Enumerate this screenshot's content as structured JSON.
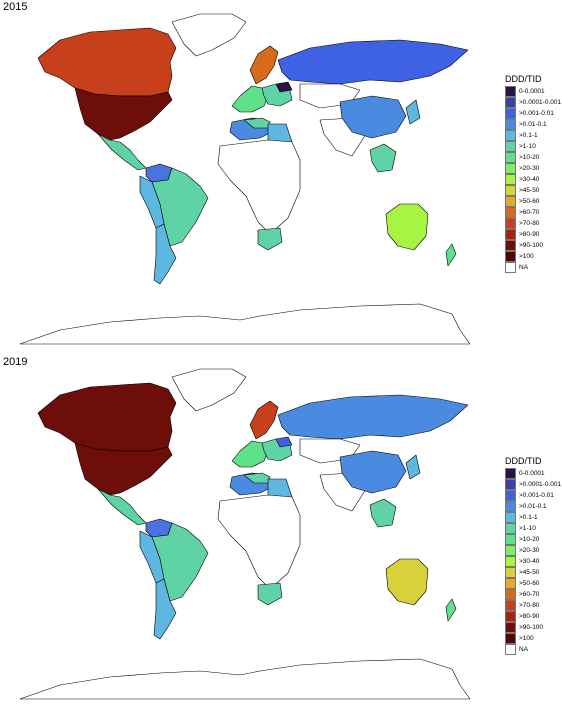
{
  "panels": [
    {
      "year": "2015",
      "regions": {
        "north_america": "#c7401b",
        "usa": "#6e0e0b",
        "central_america": "#5fd3a5",
        "south_america": "#5fd3a5",
        "west_south_america": "#5db7e0",
        "southern_cone": "#5db7e0",
        "venezuela": "#4a72e0",
        "greenland": "#ffffff",
        "western_europe": "#5fe08a",
        "eastern_europe": "#5fd3a5",
        "scandinavia": "#d86a1b",
        "belarus": "#2a1147",
        "russia": "#3f61e3",
        "middle_east": "#4a8ae0",
        "china": "#4a8ae0",
        "east_asia": "#5db7e0",
        "southeast_asia": "#5fd3a5",
        "south_asia": "#ffffff",
        "central_asia": "#ffffff",
        "africa": "#ffffff",
        "north_africa": "#5fd3a5",
        "egypt": "#5db7e0",
        "south_africa": "#5fd3a5",
        "australia": "#a7f542",
        "new_zealand": "#5fe08a",
        "antarctica": "#ffffff"
      }
    },
    {
      "year": "2019",
      "regions": {
        "north_america": "#6e0e0b",
        "usa": "#6e0e0b",
        "central_america": "#5fd3a5",
        "south_america": "#5fd3a5",
        "west_south_america": "#5db7e0",
        "southern_cone": "#5db7e0",
        "venezuela": "#4a72e0",
        "greenland": "#ffffff",
        "western_europe": "#5fe08a",
        "eastern_europe": "#5fd3a5",
        "scandinavia": "#c7401b",
        "belarus": "#3f61e3",
        "russia": "#4a8ae0",
        "middle_east": "#4a8ae0",
        "china": "#4a8ae0",
        "east_asia": "#5db7e0",
        "southeast_asia": "#5fd3a5",
        "south_asia": "#ffffff",
        "central_asia": "#ffffff",
        "africa": "#ffffff",
        "north_africa": "#5fd3a5",
        "egypt": "#5db7e0",
        "south_africa": "#5fd3a5",
        "australia": "#d7d23a",
        "new_zealand": "#5fe08a",
        "antarctica": "#ffffff"
      }
    }
  ],
  "legend": {
    "title": "DDD/TID",
    "items": [
      {
        "label": "0-0.0001",
        "color": "#2a1147"
      },
      {
        "label": ">0.0001-0.001",
        "color": "#3b3fa6"
      },
      {
        "label": ">0.001-0.01",
        "color": "#3f61e3"
      },
      {
        "label": ">0.01-0.1",
        "color": "#4a8ae0"
      },
      {
        "label": ">0.1-1",
        "color": "#5db7e0"
      },
      {
        "label": ">1-10",
        "color": "#5fd3a5"
      },
      {
        "label": ">10-20",
        "color": "#5fe08a"
      },
      {
        "label": ">20-30",
        "color": "#7ef060"
      },
      {
        "label": ">30-40",
        "color": "#a7f542"
      },
      {
        "label": ">45-50",
        "color": "#d7d23a"
      },
      {
        "label": ">50-60",
        "color": "#e8a92a"
      },
      {
        "label": ">60-70",
        "color": "#d86a1b"
      },
      {
        "label": ">70-80",
        "color": "#c7401b"
      },
      {
        "label": ">80-90",
        "color": "#a8200f"
      },
      {
        "label": ">90-100",
        "color": "#6e0e0b"
      },
      {
        "label": ">100",
        "color": "#4a0707"
      },
      {
        "label": "NA",
        "color": "#ffffff"
      }
    ]
  }
}
